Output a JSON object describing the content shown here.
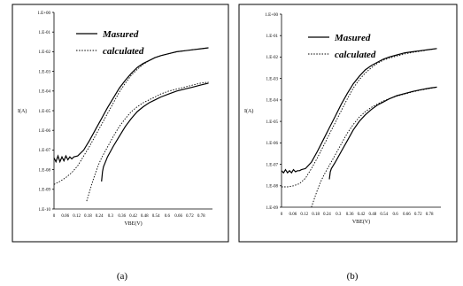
{
  "chart_data": [
    {
      "type": "line",
      "panel_label": "(a)",
      "xlabel": "VBE(V)",
      "ylabel": "I(A)",
      "x_tick_labels": [
        "0",
        "0.06",
        "0.12",
        "0.18",
        "0.24",
        "0.3",
        "0.36",
        "0.42",
        "0.48",
        "0.54",
        "0.6",
        "0.66",
        "0.72",
        "0.78"
      ],
      "y_tick_labels": [
        "1.E+00",
        "1.E-01",
        "1.E-02",
        "1.E-03",
        "1.E-04",
        "1.E-05",
        "1.E-06",
        "1.E-07",
        "1.E-08",
        "1.E-09",
        "1.E-10"
      ],
      "xlim": [
        0,
        0.8
      ],
      "ylim_log10": [
        -10,
        0
      ],
      "legend": [
        "Masured",
        "calculated"
      ],
      "series": [
        {
          "name": "Masured",
          "style": "solid",
          "x": [
            0,
            0.01,
            0.02,
            0.03,
            0.04,
            0.05,
            0.06,
            0.07,
            0.08,
            0.09,
            0.1,
            0.12,
            0.15,
            0.18,
            0.21,
            0.24,
            0.27,
            0.3,
            0.33,
            0.36,
            0.39,
            0.42,
            0.45,
            0.48,
            0.51,
            0.54,
            0.58,
            0.62,
            0.66,
            0.7,
            0.74,
            0.78
          ],
          "log10_y": [
            -7.4,
            -7.6,
            -7.3,
            -7.6,
            -7.35,
            -7.55,
            -7.3,
            -7.5,
            -7.35,
            -7.45,
            -7.35,
            -7.3,
            -7.0,
            -6.5,
            -5.95,
            -5.4,
            -4.85,
            -4.35,
            -3.85,
            -3.45,
            -3.1,
            -2.8,
            -2.6,
            -2.45,
            -2.3,
            -2.2,
            -2.1,
            -2.0,
            -1.95,
            -1.9,
            -1.85,
            -1.8
          ]
        },
        {
          "name": "calculated",
          "style": "dashed",
          "x": [
            0,
            0.03,
            0.06,
            0.09,
            0.12,
            0.15,
            0.18,
            0.21,
            0.24,
            0.27,
            0.3,
            0.33,
            0.36,
            0.39,
            0.42,
            0.45,
            0.48,
            0.51,
            0.54,
            0.58,
            0.62,
            0.66,
            0.7,
            0.74,
            0.78
          ],
          "log10_y": [
            -8.75,
            -8.6,
            -8.4,
            -8.15,
            -7.8,
            -7.3,
            -6.8,
            -6.25,
            -5.7,
            -5.15,
            -4.6,
            -4.05,
            -3.6,
            -3.2,
            -2.9,
            -2.65,
            -2.45,
            -2.3,
            -2.2,
            -2.1,
            -2.0,
            -1.95,
            -1.9,
            -1.85,
            -1.8
          ]
        },
        {
          "name": "Masured",
          "style": "solid",
          "x": [
            0.24,
            0.245,
            0.25,
            0.26,
            0.27,
            0.3,
            0.33,
            0.36,
            0.39,
            0.42,
            0.45,
            0.48,
            0.51,
            0.54,
            0.58,
            0.62,
            0.66,
            0.7,
            0.74,
            0.78
          ],
          "log10_y": [
            -8.6,
            -8.1,
            -7.85,
            -7.6,
            -7.35,
            -6.8,
            -6.3,
            -5.8,
            -5.4,
            -5.05,
            -4.8,
            -4.6,
            -4.45,
            -4.3,
            -4.15,
            -4.0,
            -3.9,
            -3.8,
            -3.7,
            -3.6
          ]
        },
        {
          "name": "calculated",
          "style": "dashed",
          "x": [
            0.165,
            0.18,
            0.195,
            0.21,
            0.225,
            0.24,
            0.27,
            0.3,
            0.33,
            0.36,
            0.39,
            0.42,
            0.45,
            0.48,
            0.51,
            0.54,
            0.58,
            0.62,
            0.66,
            0.7,
            0.74,
            0.78
          ],
          "log10_y": [
            -9.6,
            -9.1,
            -8.6,
            -8.15,
            -7.75,
            -7.4,
            -6.85,
            -6.3,
            -5.8,
            -5.4,
            -5.05,
            -4.8,
            -4.6,
            -4.45,
            -4.3,
            -4.15,
            -4.0,
            -3.9,
            -3.8,
            -3.7,
            -3.6,
            -3.55
          ]
        }
      ]
    },
    {
      "type": "line",
      "panel_label": "(b)",
      "xlabel": "VBE(V)",
      "ylabel": "I(A)",
      "x_tick_labels": [
        "0",
        "0.06",
        "0.12",
        "0.18",
        "0.24",
        "0.3",
        "0.36",
        "0.42",
        "0.48",
        "0.54",
        "0.6",
        "0.66",
        "0.72",
        "0.78"
      ],
      "y_tick_labels": [
        "1.E+00",
        "1.E-01",
        "1.E-02",
        "1.E-03",
        "1.E-04",
        "1.E-05",
        "1.E-06",
        "1.E-07",
        "1.E-08",
        "1.E-09"
      ],
      "xlim": [
        0,
        0.8
      ],
      "ylim_log10": [
        -9,
        0
      ],
      "legend": [
        "Masured",
        "calculated"
      ],
      "series": [
        {
          "name": "Masured",
          "style": "solid",
          "x": [
            0,
            0.01,
            0.02,
            0.03,
            0.04,
            0.05,
            0.06,
            0.07,
            0.08,
            0.09,
            0.1,
            0.12,
            0.15,
            0.18,
            0.21,
            0.24,
            0.27,
            0.3,
            0.33,
            0.36,
            0.39,
            0.42,
            0.45,
            0.48,
            0.51,
            0.54,
            0.58,
            0.62,
            0.66,
            0.7,
            0.74,
            0.78
          ],
          "log10_y": [
            -7.3,
            -7.4,
            -7.25,
            -7.4,
            -7.3,
            -7.4,
            -7.25,
            -7.35,
            -7.3,
            -7.3,
            -7.25,
            -7.2,
            -6.9,
            -6.4,
            -5.85,
            -5.3,
            -4.75,
            -4.2,
            -3.7,
            -3.25,
            -2.9,
            -2.6,
            -2.4,
            -2.25,
            -2.1,
            -2.0,
            -1.9,
            -1.8,
            -1.75,
            -1.7,
            -1.65,
            -1.6
          ]
        },
        {
          "name": "calculated",
          "style": "dashed",
          "x": [
            0,
            0.03,
            0.06,
            0.09,
            0.12,
            0.15,
            0.18,
            0.21,
            0.24,
            0.27,
            0.3,
            0.33,
            0.36,
            0.39,
            0.42,
            0.45,
            0.48,
            0.51,
            0.54,
            0.58,
            0.62,
            0.66,
            0.7,
            0.74,
            0.78
          ],
          "log10_y": [
            -8.05,
            -8.05,
            -8.0,
            -7.9,
            -7.65,
            -7.2,
            -6.7,
            -6.15,
            -5.6,
            -5.05,
            -4.5,
            -3.95,
            -3.45,
            -3.05,
            -2.75,
            -2.5,
            -2.3,
            -2.15,
            -2.05,
            -1.95,
            -1.85,
            -1.78,
            -1.72,
            -1.66,
            -1.6
          ]
        },
        {
          "name": "Masured",
          "style": "solid",
          "x": [
            0.24,
            0.245,
            0.25,
            0.26,
            0.27,
            0.3,
            0.33,
            0.36,
            0.39,
            0.42,
            0.45,
            0.48,
            0.51,
            0.54,
            0.58,
            0.62,
            0.66,
            0.7,
            0.74,
            0.78
          ],
          "log10_y": [
            -7.7,
            -7.35,
            -7.2,
            -7.05,
            -6.9,
            -6.4,
            -5.9,
            -5.4,
            -5.0,
            -4.7,
            -4.45,
            -4.25,
            -4.1,
            -3.95,
            -3.8,
            -3.7,
            -3.6,
            -3.52,
            -3.45,
            -3.4
          ]
        },
        {
          "name": "calculated",
          "style": "dashed",
          "x": [
            0.15,
            0.165,
            0.18,
            0.195,
            0.21,
            0.225,
            0.24,
            0.27,
            0.3,
            0.33,
            0.36,
            0.39,
            0.42,
            0.45,
            0.48,
            0.51,
            0.54,
            0.58,
            0.62,
            0.66,
            0.7,
            0.74,
            0.78
          ],
          "log10_y": [
            -9.0,
            -8.6,
            -8.2,
            -7.85,
            -7.55,
            -7.3,
            -7.05,
            -6.55,
            -6.05,
            -5.55,
            -5.15,
            -4.8,
            -4.55,
            -4.35,
            -4.2,
            -4.05,
            -3.95,
            -3.82,
            -3.72,
            -3.62,
            -3.54,
            -3.47,
            -3.4
          ]
        }
      ]
    }
  ]
}
